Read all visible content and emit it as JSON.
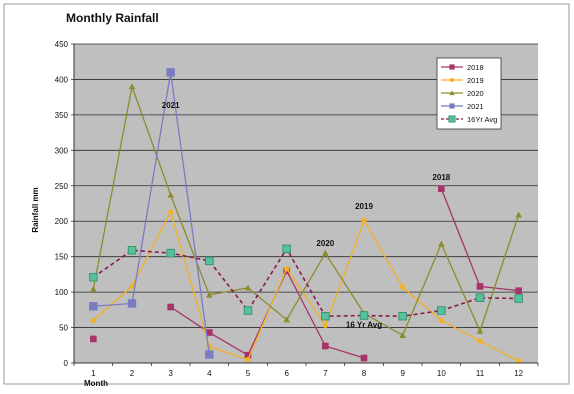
{
  "chart_data": {
    "type": "line",
    "title": "Monthly Rainfall",
    "xlabel": "Month",
    "ylabel": "Rainfall mm",
    "ylim": [
      0,
      450
    ],
    "yticks": [
      0,
      50,
      100,
      150,
      200,
      250,
      300,
      350,
      400,
      450
    ],
    "x": [
      1,
      2,
      3,
      4,
      5,
      6,
      7,
      8,
      9,
      10,
      11,
      12
    ],
    "grid": true,
    "legend_position": "top-right",
    "series": [
      {
        "name": "2018",
        "color": "#a8336a",
        "marker": "square",
        "dashed": false,
        "values": [
          34,
          null,
          79,
          43,
          11,
          130,
          24,
          7,
          null,
          246,
          108,
          102
        ]
      },
      {
        "name": "2019",
        "color": "#f5b023",
        "marker": "circle",
        "dashed": false,
        "values": [
          60,
          108,
          213,
          23,
          5,
          133,
          53,
          201,
          107,
          60,
          31,
          3
        ]
      },
      {
        "name": "2020",
        "color": "#8c8c2e",
        "marker": "triangle",
        "dashed": false,
        "values": [
          104,
          390,
          237,
          96,
          106,
          61,
          155,
          70,
          39,
          168,
          45,
          209
        ]
      },
      {
        "name": "2021",
        "color": "#7b7bc2",
        "marker": "square",
        "dashed": false,
        "values": [
          80,
          84,
          410,
          12,
          null,
          null,
          null,
          null,
          null,
          null,
          null,
          null
        ]
      },
      {
        "name": "16Yr Avg",
        "color": "#8b1a4a",
        "marker": "square-teal",
        "dashed": true,
        "values": [
          121,
          159,
          155,
          144,
          74,
          161,
          66,
          67,
          66,
          74,
          92,
          91
        ]
      }
    ],
    "annotations": [
      {
        "text": "2021",
        "x": 3,
        "y": 360
      },
      {
        "text": "2020",
        "x": 7,
        "y": 165
      },
      {
        "text": "2019",
        "x": 8,
        "y": 217
      },
      {
        "text": "2018",
        "x": 10,
        "y": 258
      },
      {
        "text": "16 Yr Avg",
        "x": 8,
        "y": 50
      }
    ]
  }
}
